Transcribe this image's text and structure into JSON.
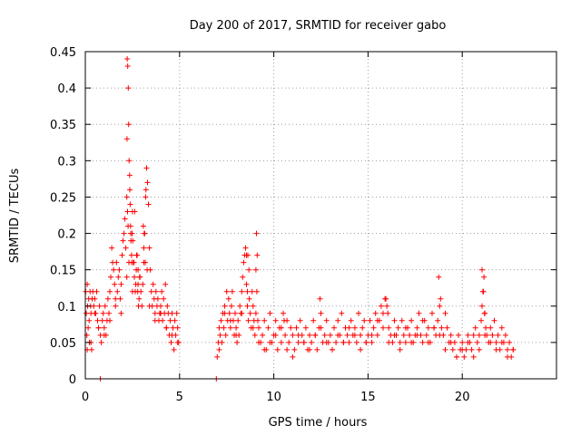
{
  "chart_data": {
    "type": "scatter",
    "title": "Day 200 of 2017, SRMTID for receiver gabo",
    "xlabel": "GPS time / hours",
    "ylabel": "SRMTID / TECUs",
    "xlim": [
      0,
      25
    ],
    "ylim": [
      0,
      0.45
    ],
    "x_ticks": [
      0,
      5,
      10,
      15,
      20
    ],
    "x_tick_labels": [
      "0",
      "5",
      "10",
      "15",
      "20"
    ],
    "y_ticks": [
      0,
      0.05,
      0.1,
      0.15,
      0.2,
      0.25,
      0.3,
      0.35,
      0.4,
      0.45
    ],
    "y_tick_labels": [
      "0",
      "0.05",
      "0.1",
      "0.15",
      "0.2",
      "0.25",
      "0.3",
      "0.35",
      "0.4",
      "0.45"
    ],
    "grid": true,
    "marker": "+",
    "color": "#ff0000",
    "series": [
      {
        "name": "SRMTID",
        "x": [
          0.02,
          0.05,
          0.08,
          0.1,
          0.12,
          0.15,
          0.18,
          0.2,
          0.22,
          0.25,
          0.28,
          0.3,
          0.33,
          0.36,
          0.4,
          0.45,
          0.5,
          0.55,
          0.6,
          0.65,
          0.7,
          0.75,
          0.8,
          0.85,
          0.9,
          0.95,
          1.0,
          1.05,
          1.1,
          1.15,
          1.2,
          1.25,
          1.3,
          1.35,
          1.4,
          1.45,
          1.5,
          1.55,
          1.6,
          1.65,
          1.7,
          1.75,
          1.8,
          1.85,
          1.9,
          1.95,
          2.0,
          2.05,
          2.1,
          2.15,
          2.2,
          2.22,
          2.25,
          2.28,
          2.3,
          2.32,
          2.35,
          2.38,
          2.4,
          2.42,
          2.45,
          2.48,
          2.5,
          2.55,
          2.6,
          2.65,
          2.7,
          2.75,
          2.8,
          2.85,
          2.9,
          2.95,
          3.0,
          3.05,
          3.1,
          3.15,
          3.2,
          3.25,
          3.3,
          3.35,
          3.4,
          3.45,
          3.5,
          3.55,
          3.6,
          3.65,
          3.7,
          3.75,
          3.8,
          3.85,
          3.9,
          3.95,
          4.0,
          4.05,
          4.1,
          4.15,
          4.2,
          4.25,
          4.3,
          4.35,
          4.4,
          4.45,
          4.5,
          4.55,
          4.6,
          4.65,
          4.7,
          4.75,
          4.8,
          4.85,
          4.9,
          4.95,
          0.8,
          6.95,
          7.0,
          7.05,
          7.1,
          7.15,
          7.2,
          7.25,
          7.3,
          7.35,
          7.4,
          7.45,
          7.5,
          7.55,
          7.6,
          7.65,
          7.7,
          7.75,
          7.8,
          7.85,
          7.9,
          7.95,
          8.0,
          8.05,
          8.1,
          8.15,
          8.2,
          8.25,
          8.3,
          8.35,
          8.4,
          8.45,
          8.5,
          8.55,
          8.6,
          8.65,
          8.7,
          8.75,
          8.8,
          8.85,
          8.9,
          8.95,
          9.0,
          9.05,
          9.1,
          9.15,
          9.2,
          9.3,
          9.4,
          9.5,
          9.6,
          9.7,
          9.8,
          9.9,
          10.0,
          10.1,
          10.2,
          10.3,
          10.4,
          10.5,
          10.6,
          10.7,
          10.8,
          10.9,
          11.0,
          11.1,
          11.2,
          11.3,
          11.4,
          11.5,
          11.6,
          11.7,
          11.8,
          11.9,
          12.0,
          12.1,
          12.2,
          12.3,
          12.4,
          12.5,
          12.6,
          12.7,
          12.8,
          12.9,
          13.0,
          13.1,
          13.2,
          13.3,
          13.4,
          13.5,
          13.6,
          13.7,
          13.8,
          13.9,
          14.0,
          14.1,
          14.2,
          14.3,
          14.4,
          14.5,
          14.6,
          14.7,
          14.8,
          14.9,
          15.0,
          15.1,
          15.2,
          15.3,
          15.4,
          15.5,
          15.6,
          15.7,
          15.8,
          15.9,
          16.0,
          16.1,
          16.2,
          16.3,
          16.4,
          16.5,
          16.6,
          16.7,
          16.8,
          16.9,
          17.0,
          17.1,
          17.2,
          17.3,
          17.4,
          17.5,
          17.6,
          17.7,
          17.8,
          17.9,
          18.0,
          18.1,
          18.2,
          18.3,
          18.4,
          18.5,
          18.6,
          18.7,
          18.8,
          18.9,
          19.0,
          19.1,
          19.2,
          19.3,
          19.4,
          19.5,
          19.6,
          19.7,
          19.8,
          19.9,
          20.0,
          20.1,
          20.2,
          20.3,
          20.4,
          20.5,
          20.6,
          20.7,
          20.8,
          20.9,
          21.0,
          21.05,
          21.1,
          21.15,
          21.2,
          21.25,
          21.3,
          21.4,
          21.5,
          21.6,
          21.7,
          21.8,
          21.9,
          22.0,
          22.1,
          22.2,
          22.3,
          22.4,
          22.5,
          22.6,
          22.7,
          0.1,
          0.3,
          0.5,
          0.7,
          1.0,
          1.3,
          1.6,
          1.9,
          2.2,
          2.5,
          2.8,
          3.1,
          3.4,
          3.7,
          4.0,
          4.3,
          4.6,
          4.9,
          7.1,
          7.4,
          7.7,
          8.0,
          8.3,
          8.6,
          8.9,
          9.2,
          9.5,
          9.8,
          10.1,
          10.4,
          10.7,
          11.0,
          11.3,
          11.6,
          11.9,
          12.2,
          12.5,
          12.8,
          13.1,
          13.4,
          13.7,
          14.0,
          14.3,
          14.6,
          14.9,
          15.2,
          15.5,
          15.8,
          16.1,
          16.4,
          16.7,
          17.0,
          17.3,
          17.6,
          17.9,
          18.2,
          18.5,
          18.8,
          19.1,
          19.4,
          19.7,
          20.0,
          20.3,
          20.6,
          20.9,
          21.2,
          21.5,
          21.8,
          22.1,
          22.4,
          22.7,
          2.21,
          2.24,
          2.27,
          2.31,
          2.36,
          2.41,
          2.46,
          2.52,
          2.58,
          2.62,
          2.68,
          2.72,
          2.78,
          2.82,
          2.88,
          3.08,
          3.12,
          3.18,
          3.22,
          3.28,
          8.55,
          8.62,
          8.68,
          9.05,
          9.08,
          9.12,
          10.55,
          12.45,
          15.95,
          16.05,
          18.75,
          18.85,
          21.05,
          21.12,
          21.18
        ],
        "y": [
          0.12,
          0.09,
          0.06,
          0.13,
          0.1,
          0.07,
          0.11,
          0.08,
          0.05,
          0.12,
          0.1,
          0.09,
          0.04,
          0.11,
          0.12,
          0.1,
          0.11,
          0.09,
          0.12,
          0.08,
          0.07,
          0.1,
          0.06,
          0.05,
          0.08,
          0.09,
          0.07,
          0.1,
          0.06,
          0.08,
          0.11,
          0.09,
          0.12,
          0.14,
          0.18,
          0.16,
          0.15,
          0.13,
          0.1,
          0.16,
          0.12,
          0.14,
          0.15,
          0.11,
          0.13,
          0.17,
          0.19,
          0.2,
          0.22,
          0.18,
          0.25,
          0.44,
          0.43,
          0.4,
          0.35,
          0.3,
          0.28,
          0.24,
          0.21,
          0.19,
          0.17,
          0.2,
          0.23,
          0.16,
          0.14,
          0.12,
          0.15,
          0.17,
          0.13,
          0.11,
          0.14,
          0.12,
          0.1,
          0.13,
          0.16,
          0.2,
          0.25,
          0.29,
          0.27,
          0.24,
          0.18,
          0.15,
          0.12,
          0.1,
          0.13,
          0.11,
          0.09,
          0.12,
          0.1,
          0.11,
          0.08,
          0.09,
          0.1,
          0.12,
          0.08,
          0.11,
          0.09,
          0.13,
          0.07,
          0.1,
          0.09,
          0.06,
          0.08,
          0.05,
          0.09,
          0.07,
          0.04,
          0.08,
          0.06,
          0.09,
          0.07,
          0.05,
          0,
          0,
          0.03,
          0.05,
          0.04,
          0.06,
          0.08,
          0.05,
          0.09,
          0.07,
          0.1,
          0.06,
          0.12,
          0.08,
          0.11,
          0.09,
          0.07,
          0.1,
          0.12,
          0.08,
          0.06,
          0.09,
          0.07,
          0.05,
          0.08,
          0.06,
          0.1,
          0.09,
          0.12,
          0.14,
          0.16,
          0.17,
          0.18,
          0.13,
          0.1,
          0.08,
          0.11,
          0.09,
          0.07,
          0.12,
          0.1,
          0.08,
          0.06,
          0.09,
          0.12,
          0.08,
          0.07,
          0.05,
          0.06,
          0.08,
          0.04,
          0.07,
          0.09,
          0.05,
          0.06,
          0.08,
          0.04,
          0.07,
          0.05,
          0.09,
          0.06,
          0.08,
          0.05,
          0.07,
          0.06,
          0.04,
          0.07,
          0.05,
          0.08,
          0.06,
          0.05,
          0.07,
          0.04,
          0.06,
          0.05,
          0.08,
          0.06,
          0.04,
          0.07,
          0.09,
          0.05,
          0.06,
          0.08,
          0.05,
          0.06,
          0.04,
          0.07,
          0.05,
          0.08,
          0.06,
          0.09,
          0.05,
          0.07,
          0.06,
          0.05,
          0.08,
          0.06,
          0.07,
          0.05,
          0.09,
          0.06,
          0.07,
          0.08,
          0.05,
          0.06,
          0.08,
          0.05,
          0.07,
          0.09,
          0.06,
          0.08,
          0.1,
          0.09,
          0.11,
          0.1,
          0.07,
          0.06,
          0.05,
          0.08,
          0.06,
          0.07,
          0.05,
          0.08,
          0.06,
          0.05,
          0.07,
          0.06,
          0.08,
          0.05,
          0.06,
          0.07,
          0.09,
          0.06,
          0.05,
          0.08,
          0.06,
          0.07,
          0.05,
          0.09,
          0.07,
          0.06,
          0.08,
          0.1,
          0.07,
          0.06,
          0.09,
          0.07,
          0.05,
          0.06,
          0.04,
          0.05,
          0.03,
          0.06,
          0.04,
          0.05,
          0.03,
          0.04,
          0.06,
          0.05,
          0.04,
          0.06,
          0.07,
          0.05,
          0.06,
          0.08,
          0.1,
          0.12,
          0.14,
          0.09,
          0.07,
          0.06,
          0.05,
          0.07,
          0.06,
          0.08,
          0.05,
          0.06,
          0.04,
          0.07,
          0.05,
          0.06,
          0.04,
          0.05,
          0.03,
          0.04,
          0.04,
          0.05,
          0.09,
          0.07,
          0.06,
          0.08,
          0.11,
          0.09,
          0.14,
          0.12,
          0.15,
          0.18,
          0.1,
          0.08,
          0.09,
          0.07,
          0.06,
          0.05,
          0.07,
          0.09,
          0.08,
          0.06,
          0.09,
          0.12,
          0.07,
          0.05,
          0.04,
          0.05,
          0.06,
          0.07,
          0.04,
          0.03,
          0.06,
          0.05,
          0.04,
          0.06,
          0.07,
          0.05,
          0.04,
          0.06,
          0.05,
          0.07,
          0.06,
          0.04,
          0.05,
          0.06,
          0.08,
          0.07,
          0.05,
          0.06,
          0.04,
          0.07,
          0.05,
          0.06,
          0.08,
          0.05,
          0.07,
          0.06,
          0.04,
          0.05,
          0.03,
          0.04,
          0.05,
          0.03,
          0.04,
          0.06,
          0.05,
          0.04,
          0.05,
          0.03,
          0.04,
          0.33,
          0.23,
          0.21,
          0.16,
          0.26,
          0.2,
          0.16,
          0.19,
          0.16,
          0.23,
          0.13,
          0.17,
          0.12,
          0.1,
          0.14,
          0.21,
          0.2,
          0.16,
          0.26,
          0.15,
          0.17,
          0.17,
          0.15,
          0.15,
          0.2,
          0.17,
          0.08,
          0.11,
          0.11,
          0.09,
          0.14,
          0.11,
          0.15,
          0.12,
          0.09
        ]
      }
    ]
  }
}
